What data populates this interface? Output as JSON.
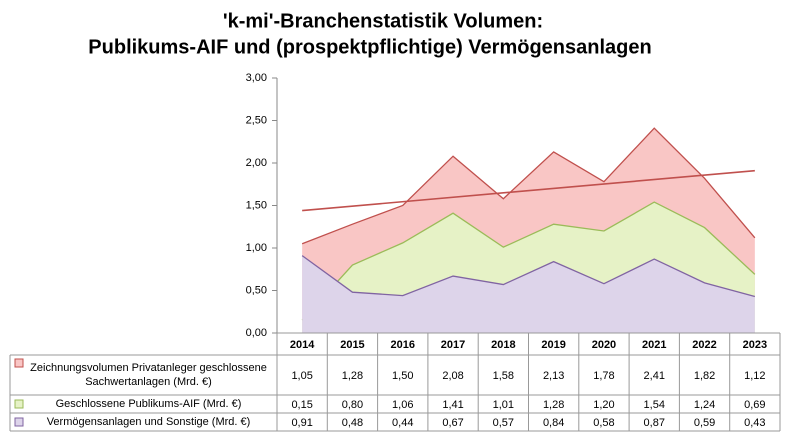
{
  "chart_data": {
    "type": "area",
    "title": [
      "'k-mi'-Branchenstatistik Volumen:",
      "Publikums-AIF und (prospektpflichtige) Vermögensanlagen"
    ],
    "categories": [
      "2014",
      "2015",
      "2016",
      "2017",
      "2018",
      "2019",
      "2020",
      "2021",
      "2022",
      "2023"
    ],
    "series": [
      {
        "name": "Zeichnungsvolumen Privatanleger geschlossene Sachwertanlagen (Mrd. €)",
        "color": "#c0504d",
        "fill": "#f9c6c5",
        "values": [
          1.05,
          1.28,
          1.5,
          2.08,
          1.58,
          2.13,
          1.78,
          2.41,
          1.82,
          1.12
        ],
        "value_labels": [
          "1,05",
          "1,28",
          "1,50",
          "2,08",
          "1,58",
          "2,13",
          "1,78",
          "2,41",
          "1,82",
          "1,12"
        ],
        "trendline": "linear"
      },
      {
        "name": "Geschlossene Publikums-AIF (Mrd. €)",
        "color": "#9bbb59",
        "fill": "#e6f2c6",
        "values": [
          0.15,
          0.8,
          1.06,
          1.41,
          1.01,
          1.28,
          1.2,
          1.54,
          1.24,
          0.69
        ],
        "value_labels": [
          "0,15",
          "0,80",
          "1,06",
          "1,41",
          "1,01",
          "1,28",
          "1,20",
          "1,54",
          "1,24",
          "0,69"
        ]
      },
      {
        "name": "Vermögensanlagen und Sonstige (Mrd. €)",
        "color": "#8064a2",
        "fill": "#ddd4ea",
        "values": [
          0.91,
          0.48,
          0.44,
          0.67,
          0.57,
          0.84,
          0.58,
          0.87,
          0.59,
          0.43
        ],
        "value_labels": [
          "0,91",
          "0,48",
          "0,44",
          "0,67",
          "0,57",
          "0,84",
          "0,58",
          "0,87",
          "0,59",
          "0,43"
        ]
      }
    ],
    "ylim": [
      0,
      3
    ],
    "yticks": [
      {
        "value": 0,
        "label": "0,00"
      },
      {
        "value": 0.5,
        "label": "0,50"
      },
      {
        "value": 1,
        "label": "1,00"
      },
      {
        "value": 1.5,
        "label": "1,50"
      },
      {
        "value": 2,
        "label": "2,00"
      },
      {
        "value": 2.5,
        "label": "2,50"
      },
      {
        "value": 3,
        "label": "3,00"
      }
    ],
    "grid": false
  }
}
